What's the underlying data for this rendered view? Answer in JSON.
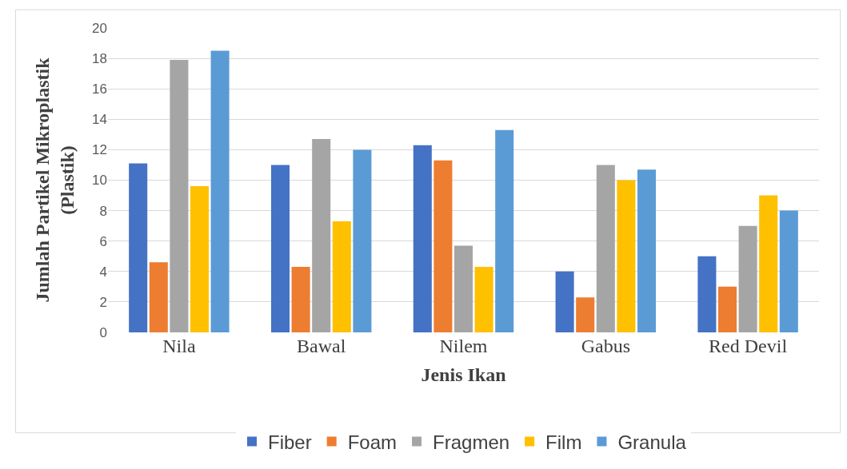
{
  "chart_data": {
    "type": "bar",
    "xlabel": "Jenis Ikan",
    "ylabel": "Jumlah Partikel Mikroplastik (Plastik)",
    "categories": [
      "Nila",
      "Bawal",
      "Nilem",
      "Gabus",
      "Red Devil"
    ],
    "series": [
      {
        "name": "Fiber",
        "color": "#4472c4",
        "values": [
          11.1,
          11.0,
          12.3,
          4.0,
          5.0
        ]
      },
      {
        "name": "Foam",
        "color": "#ed7d31",
        "values": [
          4.6,
          4.3,
          11.3,
          2.3,
          3.0
        ]
      },
      {
        "name": "Fragmen",
        "color": "#a5a5a5",
        "values": [
          17.9,
          12.7,
          5.7,
          11.0,
          7.0
        ]
      },
      {
        "name": "Film",
        "color": "#ffc000",
        "values": [
          9.6,
          7.3,
          4.3,
          10.0,
          9.0
        ]
      },
      {
        "name": "Granula",
        "color": "#5b9bd5",
        "values": [
          18.5,
          12.0,
          13.3,
          10.7,
          8.0
        ]
      }
    ],
    "ylim": [
      0,
      20
    ],
    "yticks": [
      0,
      2,
      4,
      6,
      8,
      10,
      12,
      14,
      16,
      18,
      20
    ],
    "grid": "y",
    "legend": "bottom"
  }
}
